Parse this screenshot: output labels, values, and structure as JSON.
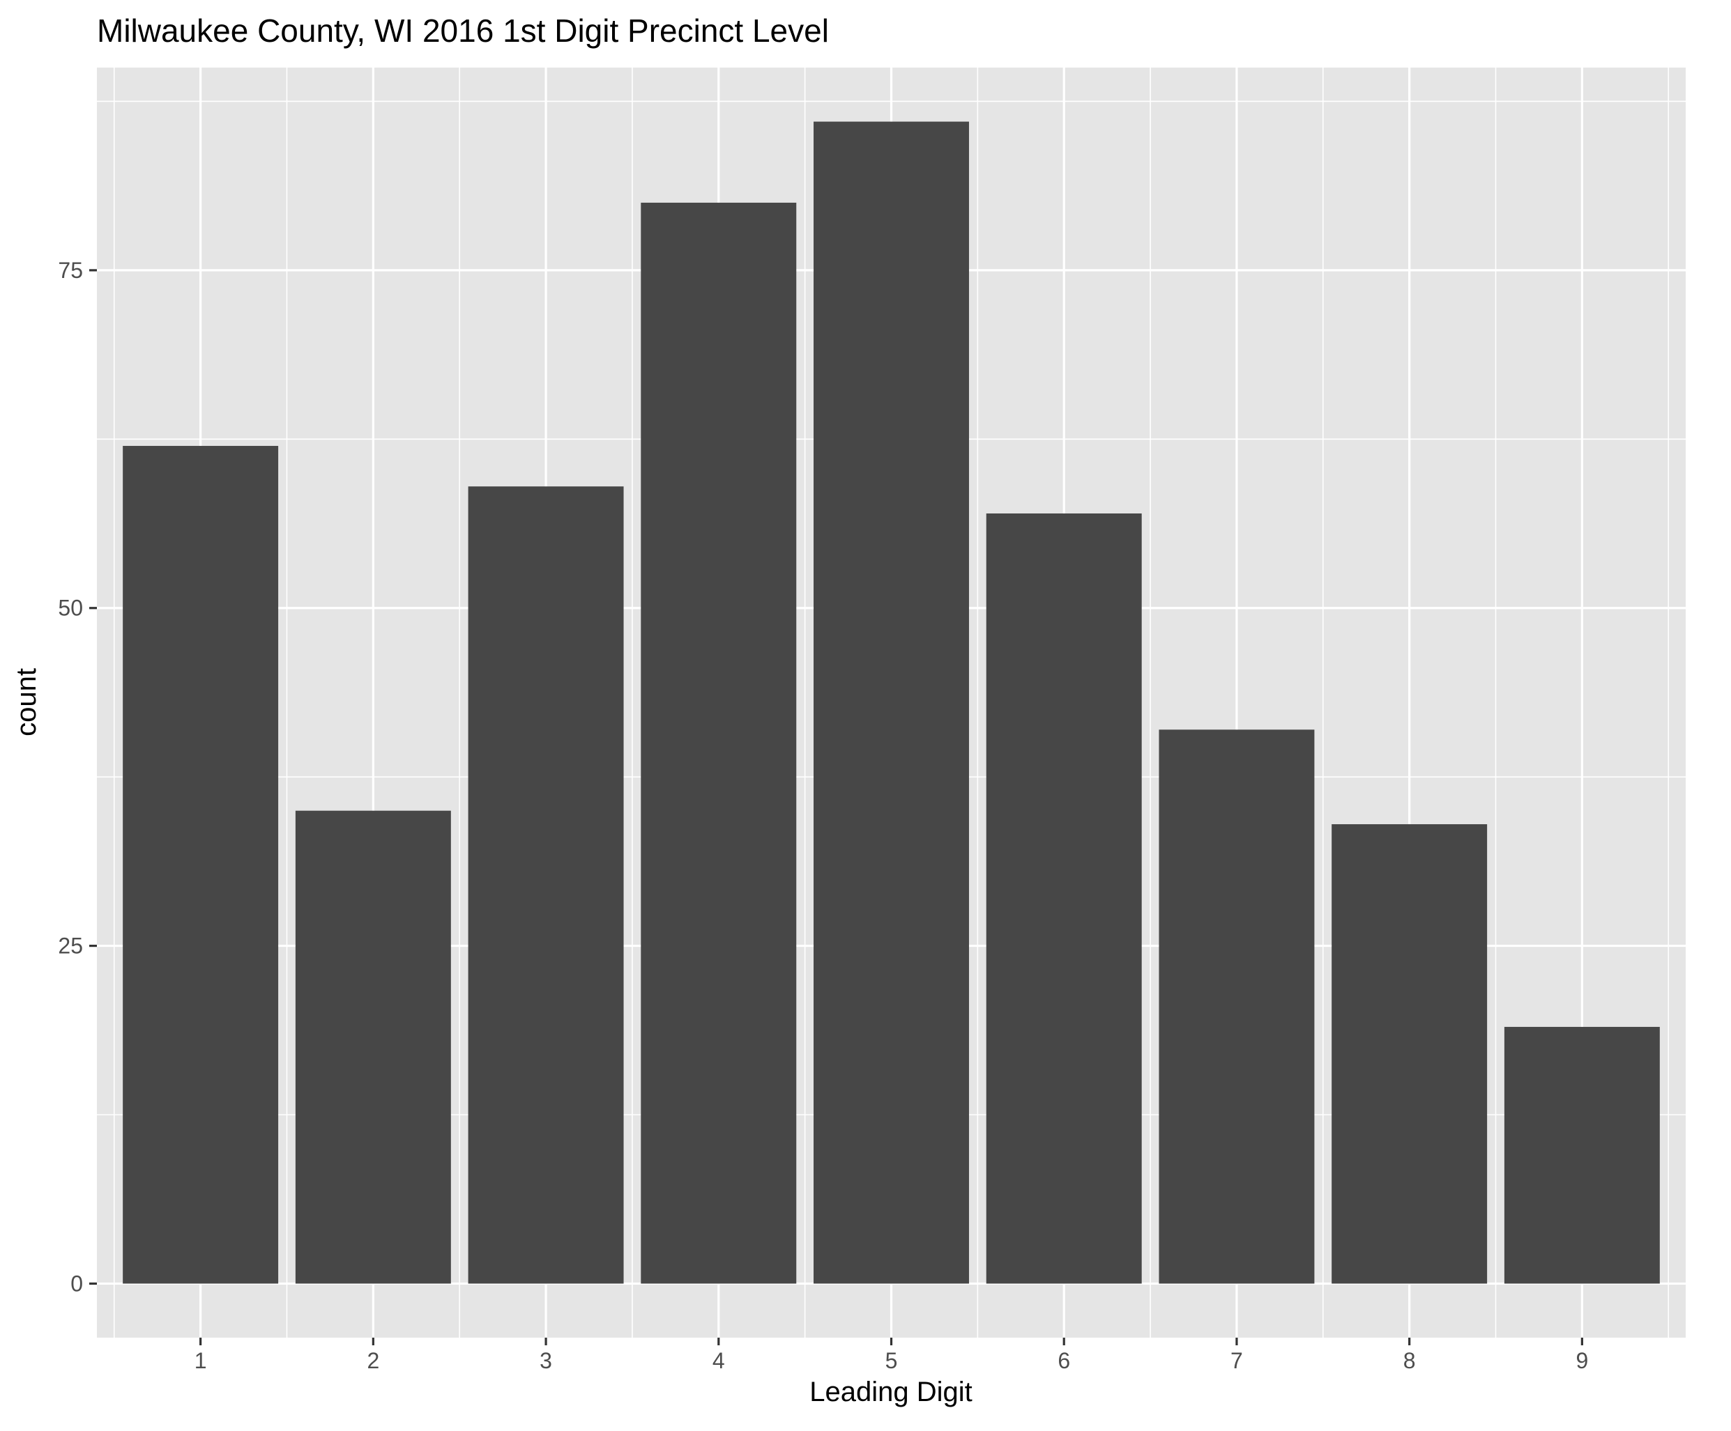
{
  "chart_data": {
    "type": "bar",
    "title": "Milwaukee County, WI 2016 1st Digit Precinct Level",
    "xlabel": "Leading Digit",
    "ylabel": "count",
    "categories": [
      "1",
      "2",
      "3",
      "4",
      "5",
      "6",
      "7",
      "8",
      "9"
    ],
    "values": [
      62,
      35,
      59,
      80,
      86,
      57,
      41,
      34,
      19
    ],
    "ylim": [
      -4,
      90
    ],
    "y_ticks": [
      0,
      25,
      50,
      75
    ],
    "y_minor_ticks": [
      12.5,
      37.5,
      62.5,
      87.5
    ],
    "grid": true,
    "colors": {
      "panel_background": "#e5e5e5",
      "grid_line": "#ffffff",
      "bar_fill": "#474747",
      "tick_text": "#4d4d4d",
      "tick_mark": "#333333",
      "title_text": "#000000"
    }
  }
}
